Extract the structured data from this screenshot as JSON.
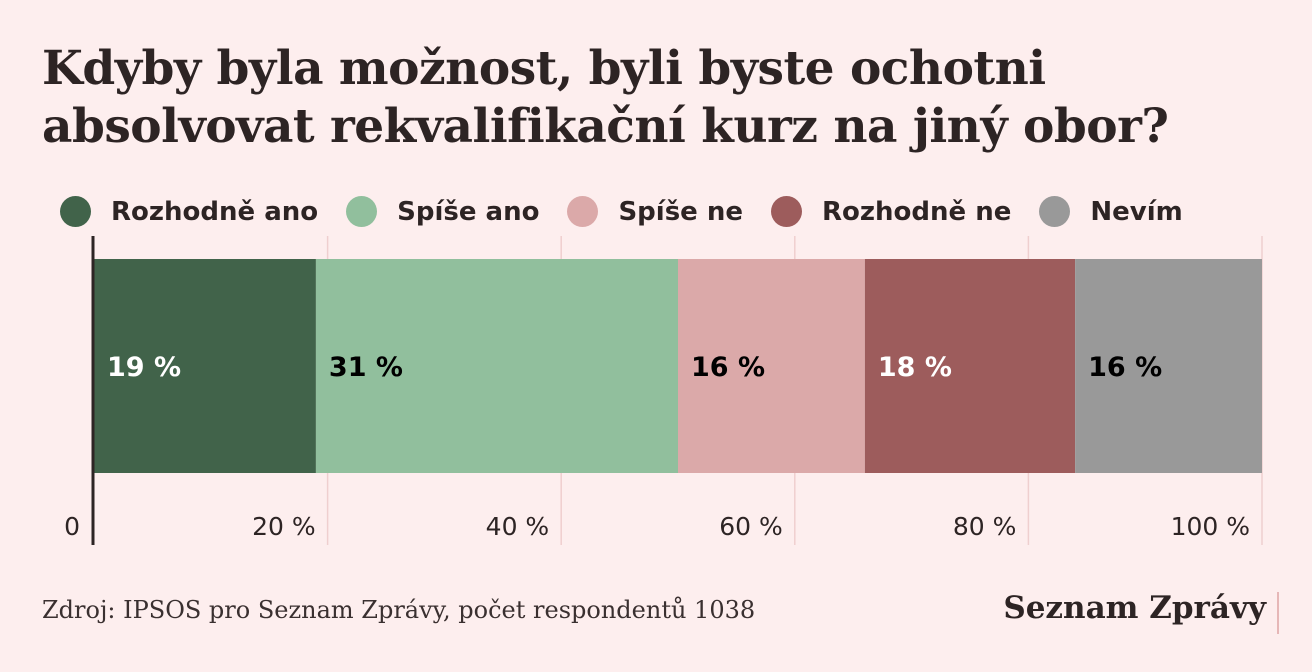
{
  "title": "Kdyby byla možnost, byli byste ochotni absolvovat rekvalifikační kurz na jiný obor?",
  "source": "Zdroj: IPSOS pro Seznam Zprávy, počet respondentů 1038",
  "brand": "Seznam Zprávy",
  "chart_data": {
    "type": "bar",
    "orientation": "horizontal-stacked",
    "title": "Kdyby byla možnost, byli byste ochotni absolvovat rekvalifikační kurz na jiný obor?",
    "xlim": [
      0,
      100
    ],
    "x_ticks": [
      "0",
      "20 %",
      "40 %",
      "60 %",
      "80 %",
      "100 %"
    ],
    "x_tick_values": [
      0,
      20,
      40,
      60,
      80,
      100
    ],
    "legend_position": "top",
    "grid": true,
    "series": [
      {
        "name": "Rozhodně ano",
        "value": 19,
        "label": "19 %",
        "color": "#41634a",
        "label_color": "#ffffff"
      },
      {
        "name": "Spíše ano",
        "value": 31,
        "label": "31 %",
        "color": "#91bf9d",
        "label_color": "#000000"
      },
      {
        "name": "Spíše ne",
        "value": 16,
        "label": "16 %",
        "color": "#dba9a9",
        "label_color": "#000000"
      },
      {
        "name": "Rozhodně ne",
        "value": 18,
        "label": "18 %",
        "color": "#9d5c5c",
        "label_color": "#ffffff"
      },
      {
        "name": "Nevím",
        "value": 16,
        "label": "16 %",
        "color": "#999999",
        "label_color": "#000000"
      }
    ]
  }
}
